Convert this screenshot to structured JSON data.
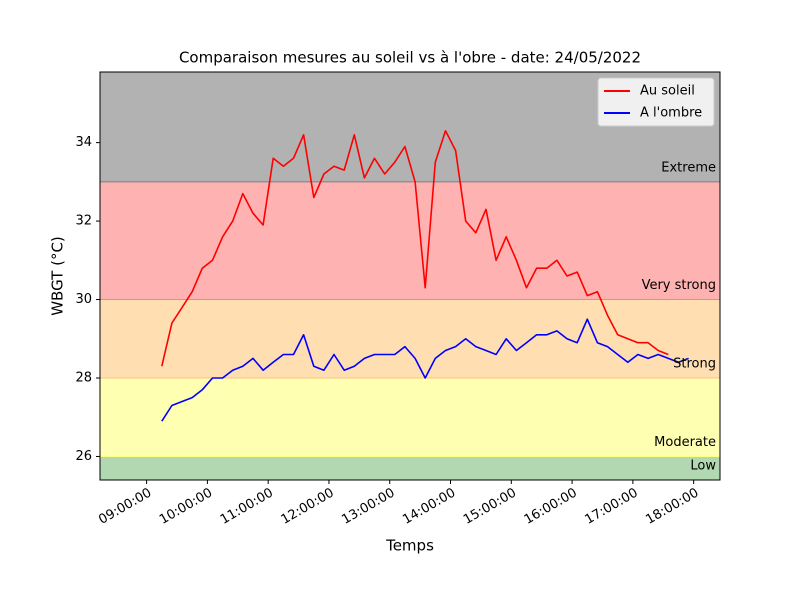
{
  "chart_data": {
    "type": "line",
    "title": "Comparaison mesures au soleil vs à l'obre - date: 24/05/2022",
    "x_label": "Temps",
    "y_label": "WBGT (°C)",
    "xlim": [
      "08:14:00",
      "18:26:00"
    ],
    "xticks": [
      "09:00:00",
      "10:00:00",
      "11:00:00",
      "12:00:00",
      "13:00:00",
      "14:00:00",
      "15:00:00",
      "16:00:00",
      "17:00:00",
      "18:00:00"
    ],
    "ylim": [
      25.4,
      35.8
    ],
    "yticks": [
      26,
      28,
      30,
      32,
      34
    ],
    "legend": "upper right",
    "bands": [
      {
        "label": "Low",
        "from": 25.4,
        "to": 26,
        "color": "#b2d8b2",
        "edge": "#8fc98f"
      },
      {
        "label": "Moderate",
        "from": 26,
        "to": 28,
        "color": "#ffffb2",
        "edge": "#ffff80"
      },
      {
        "label": "Strong",
        "from": 28,
        "to": 30,
        "color": "#ffdfb2",
        "edge": "#ffc080"
      },
      {
        "label": "Very strong",
        "from": 30,
        "to": 33,
        "color": "#ffb2b2",
        "edge": "#ff8080"
      },
      {
        "label": "Extreme",
        "from": 33,
        "to": 35.8,
        "color": "#b2b2b2",
        "edge": "#808080"
      }
    ],
    "series": [
      {
        "name": "Au soleil",
        "color": "#ff0000",
        "x": [
          "09:15:00",
          "09:25:00",
          "09:35:00",
          "09:45:00",
          "09:55:00",
          "10:05:00",
          "10:15:00",
          "10:25:00",
          "10:35:00",
          "10:45:00",
          "10:55:00",
          "11:05:00",
          "11:15:00",
          "11:25:00",
          "11:35:00",
          "11:45:00",
          "11:55:00",
          "12:05:00",
          "12:15:00",
          "12:25:00",
          "12:35:00",
          "12:45:00",
          "12:55:00",
          "13:05:00",
          "13:15:00",
          "13:25:00",
          "13:35:00",
          "13:45:00",
          "13:55:00",
          "14:05:00",
          "14:15:00",
          "14:25:00",
          "14:35:00",
          "14:45:00",
          "14:55:00",
          "15:05:00",
          "15:15:00",
          "15:25:00",
          "15:35:00",
          "15:45:00",
          "15:55:00",
          "16:05:00",
          "16:15:00",
          "16:25:00",
          "16:35:00",
          "16:45:00",
          "16:55:00",
          "17:05:00",
          "17:15:00",
          "17:25:00",
          "17:35:00"
        ],
        "values": [
          28.3,
          29.4,
          29.8,
          30.2,
          30.8,
          31.0,
          31.6,
          32.0,
          32.7,
          32.2,
          31.9,
          33.6,
          33.4,
          33.6,
          34.2,
          32.6,
          33.2,
          33.4,
          33.3,
          34.2,
          33.1,
          33.6,
          33.2,
          33.5,
          33.9,
          33.0,
          30.3,
          33.5,
          34.3,
          33.8,
          32.0,
          31.7,
          32.3,
          31.0,
          31.6,
          31.0,
          30.3,
          30.8,
          30.8,
          31.0,
          30.6,
          30.7,
          30.1,
          30.2,
          29.6,
          29.1,
          29.0,
          28.9,
          28.9,
          28.7,
          28.6
        ]
      },
      {
        "name": "A l'ombre",
        "color": "#0000ff",
        "x": [
          "09:15:00",
          "09:25:00",
          "09:35:00",
          "09:45:00",
          "09:55:00",
          "10:05:00",
          "10:15:00",
          "10:25:00",
          "10:35:00",
          "10:45:00",
          "10:55:00",
          "11:05:00",
          "11:15:00",
          "11:25:00",
          "11:35:00",
          "11:45:00",
          "11:55:00",
          "12:05:00",
          "12:15:00",
          "12:25:00",
          "12:35:00",
          "12:45:00",
          "12:55:00",
          "13:05:00",
          "13:15:00",
          "13:25:00",
          "13:35:00",
          "13:45:00",
          "13:55:00",
          "14:05:00",
          "14:15:00",
          "14:25:00",
          "14:35:00",
          "14:45:00",
          "14:55:00",
          "15:05:00",
          "15:15:00",
          "15:25:00",
          "15:35:00",
          "15:45:00",
          "15:55:00",
          "16:05:00",
          "16:15:00",
          "16:25:00",
          "16:35:00",
          "16:45:00",
          "16:55:00",
          "17:05:00",
          "17:15:00",
          "17:25:00",
          "17:35:00",
          "17:45:00",
          "17:55:00"
        ],
        "values": [
          26.9,
          27.3,
          27.4,
          27.5,
          27.7,
          28.0,
          28.0,
          28.2,
          28.3,
          28.5,
          28.2,
          28.4,
          28.6,
          28.6,
          29.1,
          28.3,
          28.2,
          28.6,
          28.2,
          28.3,
          28.5,
          28.6,
          28.6,
          28.6,
          28.8,
          28.5,
          28.0,
          28.5,
          28.7,
          28.8,
          29.0,
          28.8,
          28.7,
          28.6,
          29.0,
          28.7,
          28.9,
          29.1,
          29.1,
          29.2,
          29.0,
          28.9,
          29.5,
          28.9,
          28.8,
          28.6,
          28.4,
          28.6,
          28.5,
          28.6,
          28.5,
          28.4,
          28.5
        ]
      }
    ]
  }
}
